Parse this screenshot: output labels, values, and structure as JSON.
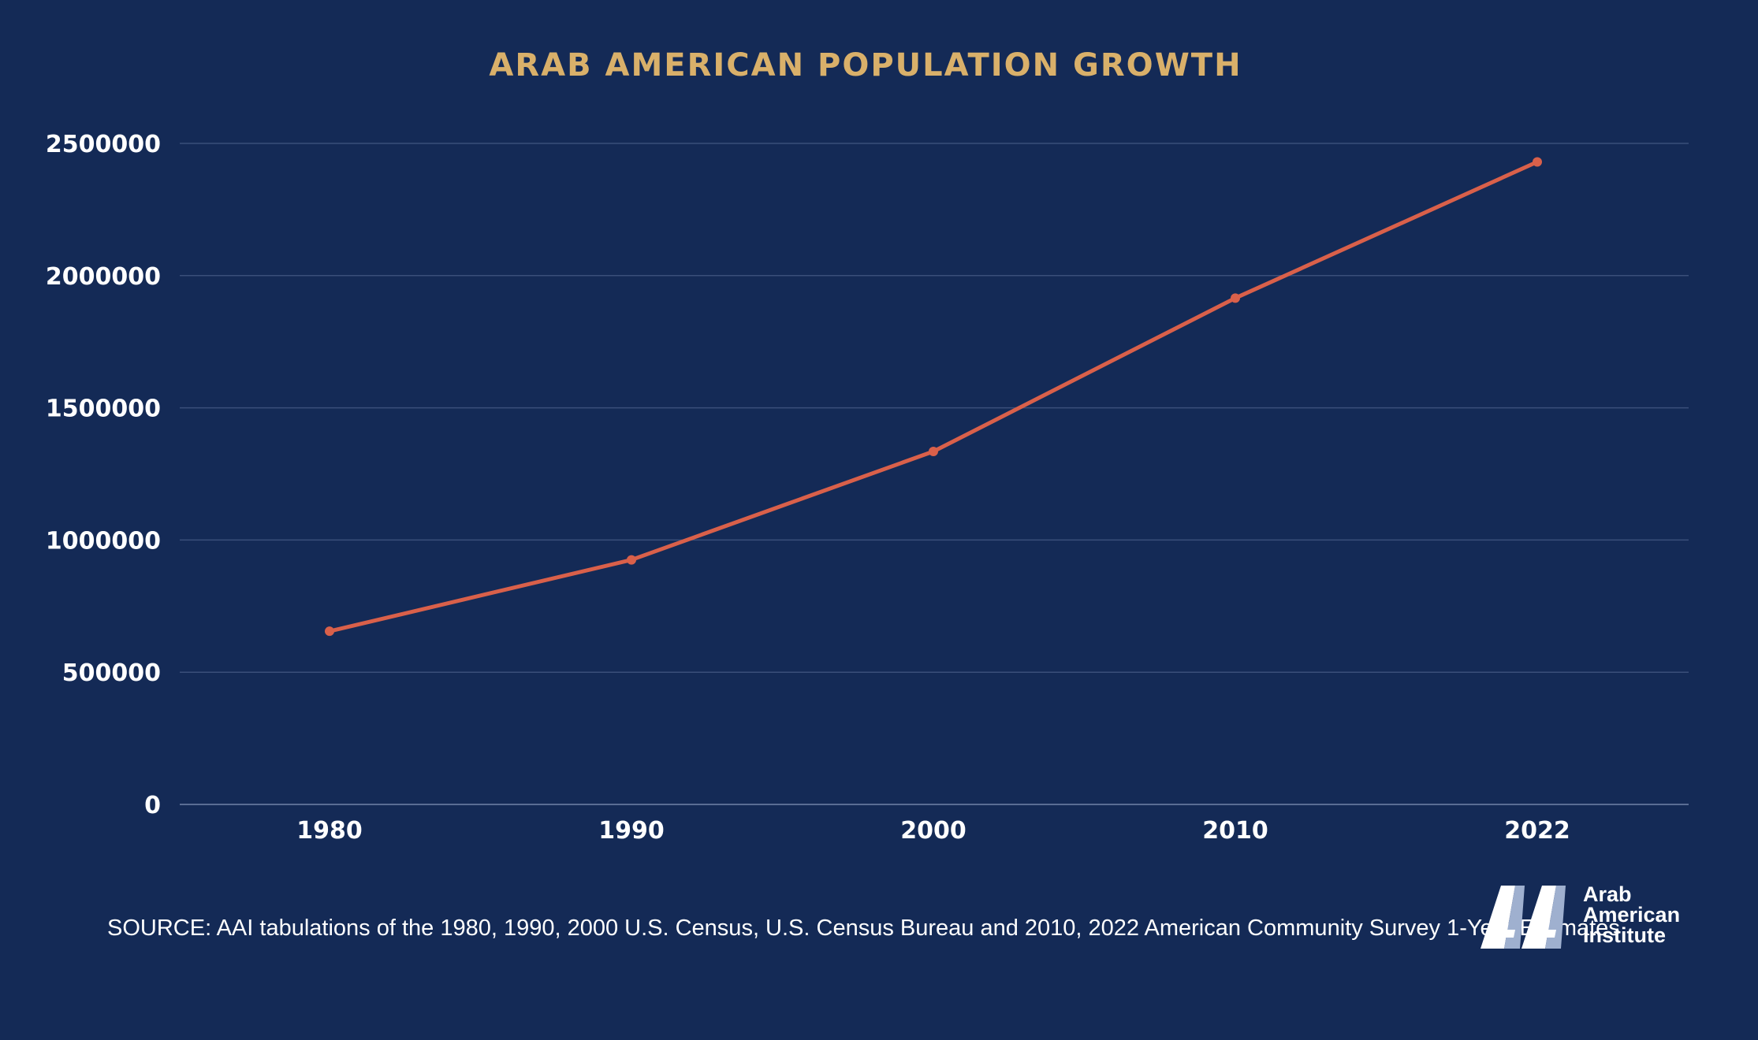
{
  "chart_data": {
    "type": "line",
    "title": "ARAB AMERICAN POPULATION GROWTH",
    "xlabel": "",
    "ylabel": "",
    "categories": [
      "1980",
      "1990",
      "2000",
      "2010",
      "2022"
    ],
    "series": [
      {
        "values": [
          655000,
          925000,
          1335000,
          1915000,
          2430000
        ]
      }
    ],
    "ylim": [
      0,
      2500000
    ],
    "yticks": [
      "0",
      "500000",
      "1000000",
      "1500000",
      "2000000",
      "2500000"
    ],
    "grid": true,
    "legend": "none",
    "line_color": "#d9604a",
    "grid_color": "#3a4f7a"
  },
  "source_note": "SOURCE: AAI tabulations of the 1980, 1990, 2000 U.S. Census, U.S. Census Bureau and 2010, 2022 American Community Survey 1-Year Estimates",
  "logo": {
    "line1": "Arab",
    "line2": "American",
    "line3": "Institute"
  },
  "colors": {
    "background": "#142a56",
    "title": "#d9b06a",
    "text": "#ffffff",
    "logo_light": "#ffffff",
    "logo_muted": "#9fb0cf"
  }
}
